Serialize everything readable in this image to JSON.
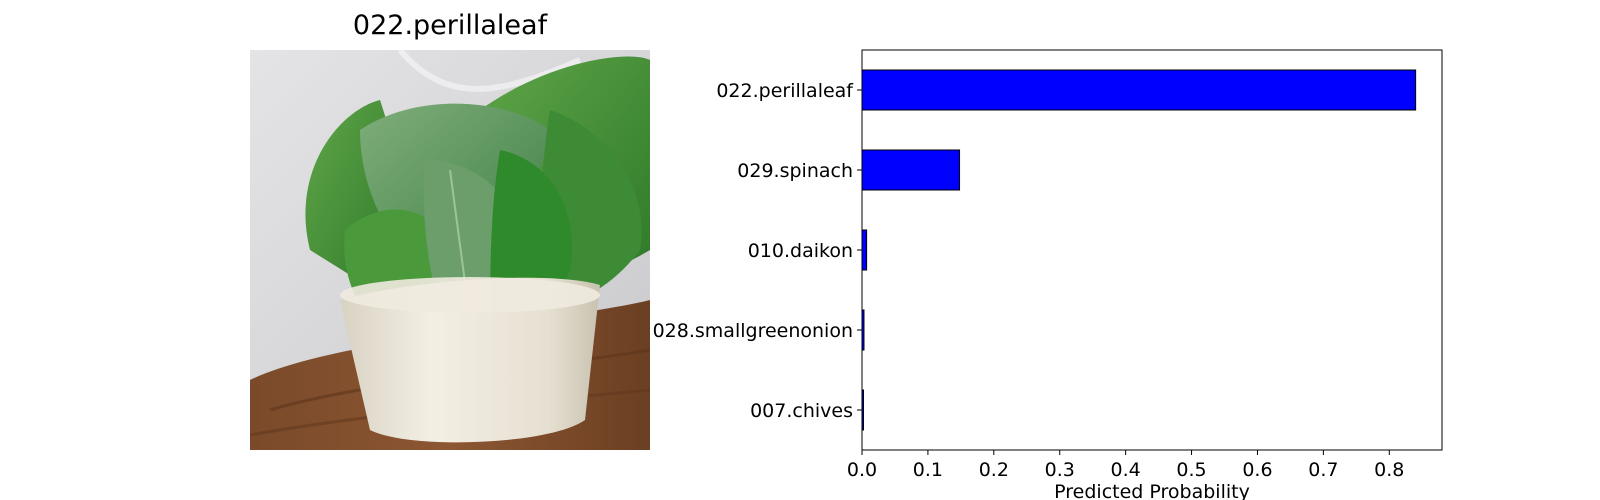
{
  "image_panel": {
    "title": "022.perillaleaf",
    "photo_icon": "perilla-leaves-in-white-pot"
  },
  "chart_data": {
    "type": "bar",
    "orientation": "horizontal",
    "categories": [
      "022.perillaleaf",
      "029.spinach",
      "010.daikon",
      "028.smallgreenonion",
      "007.chives"
    ],
    "values": [
      0.84,
      0.148,
      0.007,
      0.003,
      0.002
    ],
    "xlabel": "Predicted Probability",
    "ylabel": "",
    "xlim": [
      0,
      0.88
    ],
    "xticks": [
      0.0,
      0.1,
      0.2,
      0.3,
      0.4,
      0.5,
      0.6,
      0.7,
      0.8
    ],
    "xtick_labels": [
      "0.0",
      "0.1",
      "0.2",
      "0.3",
      "0.4",
      "0.5",
      "0.6",
      "0.7",
      "0.8"
    ],
    "grid": false,
    "legend": "none",
    "bar_color": "#0000ff",
    "bar_edge_color": "#000000"
  }
}
